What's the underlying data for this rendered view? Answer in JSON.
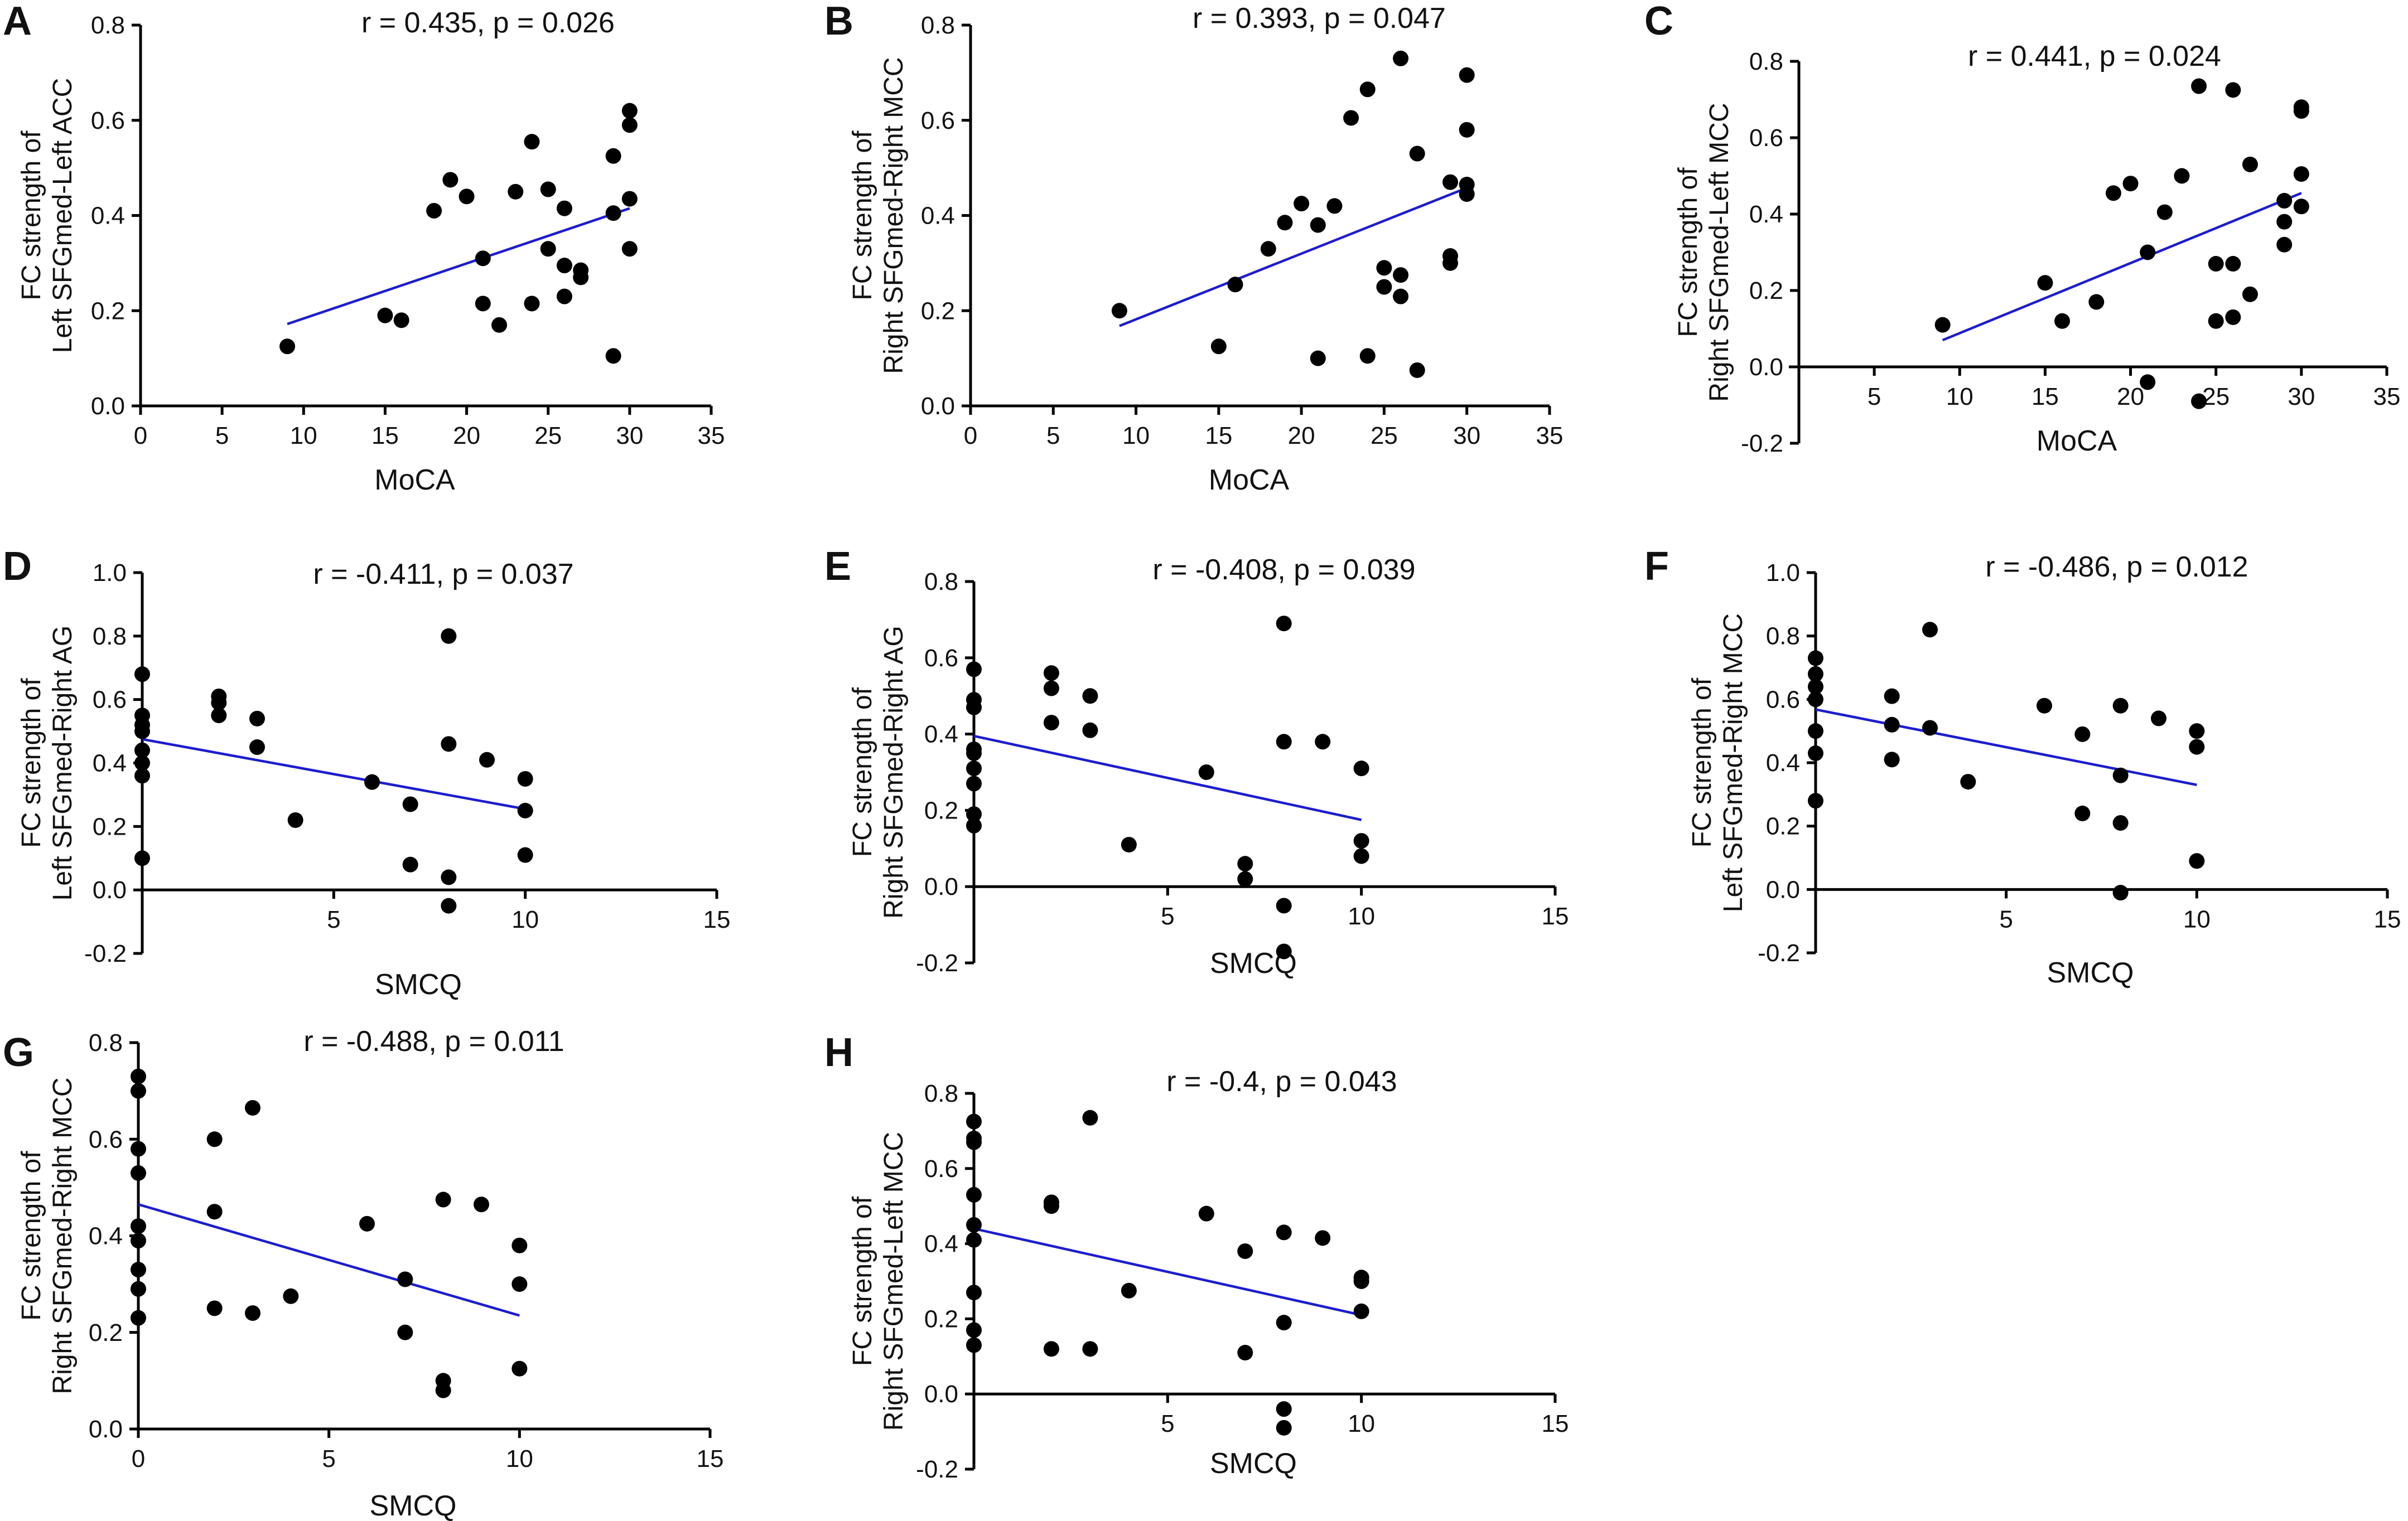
{
  "chart_data": [
    {
      "type": "scatter",
      "panel": "A",
      "title": "r = 0.435, p = 0.026",
      "xlabel": "MoCA",
      "ylabel": [
        "FC strength of",
        "Left SFGmed-Left ACC"
      ],
      "xlim": [
        0,
        35
      ],
      "ylim": [
        0,
        0.8
      ],
      "xticks": [
        0,
        5,
        10,
        15,
        20,
        25,
        30,
        35
      ],
      "yticks": [
        0.0,
        0.2,
        0.4,
        0.6,
        0.8
      ],
      "xtick_labels": [
        "0",
        "5",
        "10",
        "15",
        "20",
        "25",
        "30",
        "35"
      ],
      "ytick_labels": [
        "0.0",
        "0.2",
        "0.4",
        "0.6",
        "0.8"
      ],
      "points": [
        [
          9,
          0.125
        ],
        [
          15,
          0.19
        ],
        [
          16,
          0.18
        ],
        [
          18,
          0.41
        ],
        [
          19,
          0.475
        ],
        [
          20,
          0.44
        ],
        [
          21,
          0.31
        ],
        [
          21,
          0.215
        ],
        [
          22,
          0.17
        ],
        [
          23,
          0.45
        ],
        [
          24,
          0.555
        ],
        [
          24,
          0.215
        ],
        [
          25,
          0.455
        ],
        [
          25,
          0.33
        ],
        [
          26,
          0.415
        ],
        [
          26,
          0.295
        ],
        [
          26,
          0.23
        ],
        [
          27,
          0.285
        ],
        [
          27,
          0.27
        ],
        [
          29,
          0.525
        ],
        [
          29,
          0.405
        ],
        [
          29,
          0.105
        ],
        [
          30,
          0.62
        ],
        [
          30,
          0.59
        ],
        [
          30,
          0.435
        ],
        [
          30,
          0.33
        ]
      ],
      "regression": [
        [
          9,
          0.172
        ],
        [
          30,
          0.415
        ]
      ]
    },
    {
      "type": "scatter",
      "panel": "B",
      "title": "r = 0.393, p = 0.047",
      "xlabel": "MoCA",
      "ylabel": [
        "FC strength of",
        "Right SFGmed-Right MCC"
      ],
      "xlim": [
        0,
        35
      ],
      "ylim": [
        0,
        0.8
      ],
      "xticks": [
        0,
        5,
        10,
        15,
        20,
        25,
        30,
        35
      ],
      "yticks": [
        0.0,
        0.2,
        0.4,
        0.6,
        0.8
      ],
      "xtick_labels": [
        "0",
        "5",
        "10",
        "15",
        "20",
        "25",
        "30",
        "35"
      ],
      "ytick_labels": [
        "0.0",
        "0.2",
        "0.4",
        "0.6",
        "0.8"
      ],
      "points": [
        [
          9,
          0.2
        ],
        [
          15,
          0.125
        ],
        [
          16,
          0.255
        ],
        [
          18,
          0.33
        ],
        [
          19,
          0.385
        ],
        [
          20,
          0.425
        ],
        [
          21,
          0.38
        ],
        [
          21,
          0.1
        ],
        [
          22,
          0.42
        ],
        [
          23,
          0.605
        ],
        [
          24,
          0.665
        ],
        [
          24,
          0.105
        ],
        [
          25,
          0.29
        ],
        [
          25,
          0.25
        ],
        [
          26,
          0.73
        ],
        [
          26,
          0.275
        ],
        [
          26,
          0.23
        ],
        [
          27,
          0.53
        ],
        [
          27,
          0.075
        ],
        [
          29,
          0.47
        ],
        [
          29,
          0.315
        ],
        [
          29,
          0.3
        ],
        [
          30,
          0.695
        ],
        [
          30,
          0.58
        ],
        [
          30,
          0.465
        ],
        [
          30,
          0.445
        ]
      ],
      "regression": [
        [
          9,
          0.168
        ],
        [
          30,
          0.458
        ]
      ]
    },
    {
      "type": "scatter",
      "panel": "C",
      "title": "r = 0.441, p = 0.024",
      "xlabel": "MoCA",
      "ylabel": [
        "FC strength of",
        "Right SFGmed-Left MCC"
      ],
      "xlim": [
        0,
        35
      ],
      "ylim": [
        -0.2,
        0.8
      ],
      "xticks": [
        5,
        10,
        15,
        20,
        25,
        30,
        35
      ],
      "yticks": [
        -0.2,
        0.0,
        0.2,
        0.4,
        0.6,
        0.8
      ],
      "xtick_labels": [
        "5",
        "10",
        "15",
        "20",
        "25",
        "30",
        "35"
      ],
      "ytick_labels": [
        "-0.2",
        "0.0",
        "0.2",
        "0.4",
        "0.6",
        "0.8"
      ],
      "points": [
        [
          9,
          0.11
        ],
        [
          15,
          0.22
        ],
        [
          16,
          0.12
        ],
        [
          18,
          0.17
        ],
        [
          19,
          0.455
        ],
        [
          20,
          0.48
        ],
        [
          21,
          0.3
        ],
        [
          21,
          -0.04
        ],
        [
          22,
          0.405
        ],
        [
          23,
          0.5
        ],
        [
          24,
          0.735
        ],
        [
          24,
          -0.09
        ],
        [
          25,
          0.27
        ],
        [
          25,
          0.12
        ],
        [
          26,
          0.725
        ],
        [
          26,
          0.27
        ],
        [
          26,
          0.13
        ],
        [
          27,
          0.53
        ],
        [
          27,
          0.19
        ],
        [
          29,
          0.435
        ],
        [
          29,
          0.38
        ],
        [
          29,
          0.32
        ],
        [
          30,
          0.68
        ],
        [
          30,
          0.67
        ],
        [
          30,
          0.505
        ],
        [
          30,
          0.42
        ]
      ],
      "regression": [
        [
          9,
          0.07
        ],
        [
          30,
          0.455
        ]
      ]
    },
    {
      "type": "scatter",
      "panel": "D",
      "title": "r = -0.411, p = 0.037",
      "xlabel": "SMCQ",
      "ylabel": [
        "FC strength of",
        "Left SFGmed-Right AG"
      ],
      "xlim": [
        0,
        15
      ],
      "ylim": [
        -0.2,
        1.0
      ],
      "xticks": [
        5,
        10,
        15
      ],
      "yticks": [
        -0.2,
        0.0,
        0.2,
        0.4,
        0.6,
        0.8,
        1.0
      ],
      "xtick_labels": [
        "5",
        "10",
        "15"
      ],
      "ytick_labels": [
        "-0.2",
        "0.0",
        "0.2",
        "0.4",
        "0.6",
        "0.8",
        "1.0"
      ],
      "points": [
        [
          0,
          0.68
        ],
        [
          0,
          0.55
        ],
        [
          0,
          0.52
        ],
        [
          0,
          0.5
        ],
        [
          0,
          0.44
        ],
        [
          0,
          0.4
        ],
        [
          0,
          0.36
        ],
        [
          0,
          0.1
        ],
        [
          2,
          0.61
        ],
        [
          2,
          0.59
        ],
        [
          2,
          0.55
        ],
        [
          3,
          0.54
        ],
        [
          3,
          0.45
        ],
        [
          4,
          0.22
        ],
        [
          6,
          0.34
        ],
        [
          7,
          0.27
        ],
        [
          7,
          0.08
        ],
        [
          8,
          0.8
        ],
        [
          8,
          0.46
        ],
        [
          8,
          0.04
        ],
        [
          8,
          -0.05
        ],
        [
          9,
          0.41
        ],
        [
          10,
          0.35
        ],
        [
          10,
          0.25
        ],
        [
          10,
          0.11
        ]
      ],
      "regression": [
        [
          0,
          0.475
        ],
        [
          10,
          0.255
        ]
      ]
    },
    {
      "type": "scatter",
      "panel": "E",
      "title": "r = -0.408, p = 0.039",
      "xlabel": "SMCQ",
      "ylabel": [
        "FC strength of",
        "Right SFGmed-Right AG"
      ],
      "xlim": [
        0,
        15
      ],
      "ylim": [
        -0.2,
        0.8
      ],
      "xticks": [
        5,
        10,
        15
      ],
      "yticks": [
        -0.2,
        0.0,
        0.2,
        0.4,
        0.6,
        0.8
      ],
      "xtick_labels": [
        "5",
        "10",
        "15"
      ],
      "ytick_labels": [
        "-0.2",
        "0.0",
        "0.2",
        "0.4",
        "0.6",
        "0.8"
      ],
      "points": [
        [
          0,
          0.57
        ],
        [
          0,
          0.49
        ],
        [
          0,
          0.47
        ],
        [
          0,
          0.36
        ],
        [
          0,
          0.35
        ],
        [
          0,
          0.31
        ],
        [
          0,
          0.27
        ],
        [
          0,
          0.19
        ],
        [
          0,
          0.16
        ],
        [
          2,
          0.56
        ],
        [
          2,
          0.52
        ],
        [
          2,
          0.43
        ],
        [
          3,
          0.5
        ],
        [
          3,
          0.41
        ],
        [
          4,
          0.11
        ],
        [
          6,
          0.3
        ],
        [
          7,
          0.06
        ],
        [
          7,
          0.02
        ],
        [
          8,
          0.69
        ],
        [
          8,
          0.38
        ],
        [
          8,
          -0.05
        ],
        [
          8,
          -0.17
        ],
        [
          9,
          0.38
        ],
        [
          10,
          0.31
        ],
        [
          10,
          0.12
        ],
        [
          10,
          0.08
        ]
      ],
      "regression": [
        [
          0,
          0.395
        ],
        [
          10,
          0.175
        ]
      ]
    },
    {
      "type": "scatter",
      "panel": "F",
      "title": "r = -0.486, p = 0.012",
      "xlabel": "SMCQ",
      "ylabel": [
        "FC strength of",
        "Left SFGmed-Right MCC"
      ],
      "xlim": [
        0,
        15
      ],
      "ylim": [
        -0.2,
        1.0
      ],
      "xticks": [
        5,
        10,
        15
      ],
      "yticks": [
        -0.2,
        0.0,
        0.2,
        0.4,
        0.6,
        0.8,
        1.0
      ],
      "xtick_labels": [
        "5",
        "10",
        "15"
      ],
      "ytick_labels": [
        "-0.2",
        "0.0",
        "0.2",
        "0.4",
        "0.6",
        "0.8",
        "1.0"
      ],
      "points": [
        [
          0,
          0.73
        ],
        [
          0,
          0.68
        ],
        [
          0,
          0.64
        ],
        [
          0,
          0.6
        ],
        [
          0,
          0.5
        ],
        [
          0,
          0.43
        ],
        [
          0,
          0.28
        ],
        [
          2,
          0.61
        ],
        [
          2,
          0.52
        ],
        [
          2,
          0.41
        ],
        [
          3,
          0.82
        ],
        [
          3,
          0.51
        ],
        [
          4,
          0.34
        ],
        [
          6,
          0.58
        ],
        [
          7,
          0.49
        ],
        [
          7,
          0.24
        ],
        [
          8,
          0.58
        ],
        [
          8,
          0.36
        ],
        [
          8,
          0.21
        ],
        [
          8,
          -0.01
        ],
        [
          9,
          0.54
        ],
        [
          10,
          0.5
        ],
        [
          10,
          0.45
        ],
        [
          10,
          0.09
        ]
      ],
      "regression": [
        [
          0,
          0.568
        ],
        [
          10,
          0.33
        ]
      ]
    },
    {
      "type": "scatter",
      "panel": "G",
      "title": "r = -0.488, p = 0.011",
      "xlabel": "SMCQ",
      "ylabel": [
        "FC strength of",
        "Right SFGmed-Right MCC"
      ],
      "xlim": [
        0,
        15
      ],
      "ylim": [
        0,
        0.8
      ],
      "xticks": [
        0,
        5,
        10,
        15
      ],
      "yticks": [
        0.0,
        0.2,
        0.4,
        0.6,
        0.8
      ],
      "xtick_labels": [
        "0",
        "5",
        "10",
        "15"
      ],
      "ytick_labels": [
        "0.0",
        "0.2",
        "0.4",
        "0.6",
        "0.8"
      ],
      "points": [
        [
          0,
          0.73
        ],
        [
          0,
          0.7
        ],
        [
          0,
          0.58
        ],
        [
          0,
          0.53
        ],
        [
          0,
          0.42
        ],
        [
          0,
          0.39
        ],
        [
          0,
          0.33
        ],
        [
          0,
          0.29
        ],
        [
          0,
          0.23
        ],
        [
          2,
          0.6
        ],
        [
          2,
          0.45
        ],
        [
          2,
          0.25
        ],
        [
          3,
          0.665
        ],
        [
          3,
          0.24
        ],
        [
          4,
          0.275
        ],
        [
          6,
          0.425
        ],
        [
          7,
          0.31
        ],
        [
          7,
          0.2
        ],
        [
          8,
          0.475
        ],
        [
          8,
          0.1
        ],
        [
          8,
          0.08
        ],
        [
          9,
          0.465
        ],
        [
          10,
          0.38
        ],
        [
          10,
          0.3
        ],
        [
          10,
          0.125
        ]
      ],
      "regression": [
        [
          0,
          0.465
        ],
        [
          10,
          0.235
        ]
      ]
    },
    {
      "type": "scatter",
      "panel": "H",
      "title": "r = -0.4, p = 0.043",
      "xlabel": "SMCQ",
      "ylabel": [
        "FC strength of",
        "Right SFGmed-Left MCC"
      ],
      "xlim": [
        0,
        15
      ],
      "ylim": [
        -0.2,
        0.8
      ],
      "xticks": [
        5,
        10,
        15
      ],
      "yticks": [
        -0.2,
        0.0,
        0.2,
        0.4,
        0.6,
        0.8
      ],
      "xtick_labels": [
        "5",
        "10",
        "15"
      ],
      "ytick_labels": [
        "-0.2",
        "0.0",
        "0.2",
        "0.4",
        "0.6",
        "0.8"
      ],
      "points": [
        [
          0,
          0.725
        ],
        [
          0,
          0.68
        ],
        [
          0,
          0.67
        ],
        [
          0,
          0.53
        ],
        [
          0,
          0.45
        ],
        [
          0,
          0.41
        ],
        [
          0,
          0.27
        ],
        [
          0,
          0.17
        ],
        [
          0,
          0.13
        ],
        [
          2,
          0.51
        ],
        [
          2,
          0.5
        ],
        [
          2,
          0.12
        ],
        [
          3,
          0.735
        ],
        [
          3,
          0.12
        ],
        [
          4,
          0.275
        ],
        [
          6,
          0.48
        ],
        [
          7,
          0.38
        ],
        [
          7,
          0.11
        ],
        [
          8,
          0.43
        ],
        [
          8,
          0.19
        ],
        [
          8,
          -0.04
        ],
        [
          8,
          -0.09
        ],
        [
          9,
          0.415
        ],
        [
          10,
          0.31
        ],
        [
          10,
          0.3
        ],
        [
          10,
          0.22
        ]
      ],
      "regression": [
        [
          0,
          0.44
        ],
        [
          10,
          0.21
        ]
      ]
    }
  ]
}
